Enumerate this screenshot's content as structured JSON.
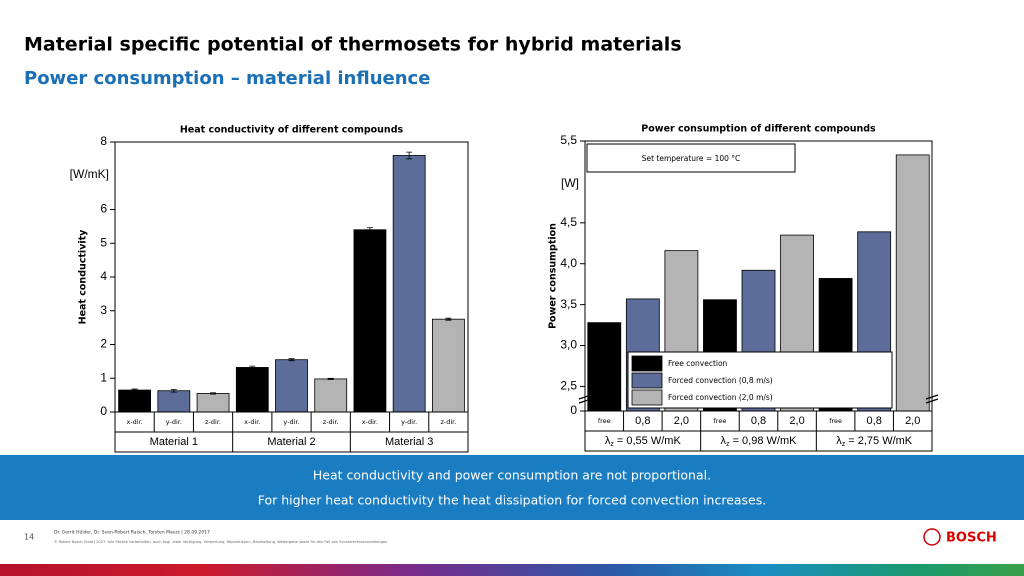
{
  "header": {
    "title": "Material specific potential of thermosets for hybrid materials",
    "subtitle": "Power consumption – material influence"
  },
  "chart_data": [
    {
      "type": "bar",
      "title": "Heat conductivity of different compounds",
      "ylabel": "Heat conductivity",
      "yunit": "[W/mK]",
      "categories": [
        "x-dir.",
        "y-dir.",
        "z-dir.",
        "x-dir.",
        "y-dir.",
        "z-dir.",
        "x-dir.",
        "y-dir.",
        "z-dir."
      ],
      "groups": [
        "Material 1",
        "Material 2",
        "Material 3"
      ],
      "values": [
        0.65,
        0.63,
        0.55,
        1.32,
        1.55,
        0.98,
        5.4,
        7.6,
        2.75
      ],
      "errors": [
        0.03,
        0.04,
        0.02,
        0.04,
        0.03,
        0.02,
        0.06,
        0.1,
        0.03
      ],
      "colors": [
        "#000000",
        "#5b6d98",
        "#b4b4b4"
      ],
      "ylim": [
        0,
        8
      ],
      "yticks": [
        0,
        1,
        2,
        3,
        4,
        5,
        6,
        8
      ]
    },
    {
      "type": "bar",
      "title": "Power consumption of different compounds",
      "ylabel": "Power consumption",
      "yunit": "[W]",
      "annotation": "Set temperature = 100 °C",
      "categories": [
        "free",
        "0,8",
        "2,0",
        "free",
        "0,8",
        "2,0",
        "free",
        "0,8",
        "2,0"
      ],
      "groups": [
        {
          "symbol": "λ",
          "sub": "z",
          "text": " = 0,55 W/mK"
        },
        {
          "symbol": "λ",
          "sub": "z",
          "text": " = 0,98 W/mK"
        },
        {
          "symbol": "λ",
          "sub": "z",
          "text": " = 2,75 W/mK"
        }
      ],
      "values": [
        3.28,
        3.57,
        4.16,
        3.56,
        3.92,
        4.35,
        3.82,
        4.39,
        5.33
      ],
      "colors": [
        "#000000",
        "#5b6d98",
        "#b4b4b4"
      ],
      "series_names": [
        "Free convection",
        "Forced convection (0,8 m/s)",
        "Forced convection (2,0 m/s)"
      ],
      "legend": "lower center",
      "axis_break": true,
      "ylim": [
        2.2,
        5.5
      ],
      "yticks": [
        0,
        {
          "value": 2.5,
          "label": "2,5"
        },
        {
          "value": 3.0,
          "label": "3,0"
        },
        {
          "value": 3.5,
          "label": "3,5"
        },
        {
          "value": 4.0,
          "label": "4,0"
        },
        {
          "value": 4.5,
          "label": "4,5"
        },
        {
          "value": 5.5,
          "label": "5,5"
        }
      ]
    }
  ],
  "banner": [
    "Heat conductivity and power consumption are not proportional.",
    "For higher heat conductivity the heat dissipation for forced convection increases."
  ],
  "footer": {
    "page": "14",
    "authors": "Dr. Gerrit Hülder, Dr. Sven-Robert Raisch, Torsten Maurz | 28.09.2017",
    "copyright": "© Robert Bosch GmbH 2017. Alle Rechte vorbehalten, auch bzgl. jeder Verfügung, Verwertung, Reproduktion, Bearbeitung, Weitergabe sowie für den Fall von Schutzrechtsanmeldungen.",
    "logo": "BOSCH"
  }
}
